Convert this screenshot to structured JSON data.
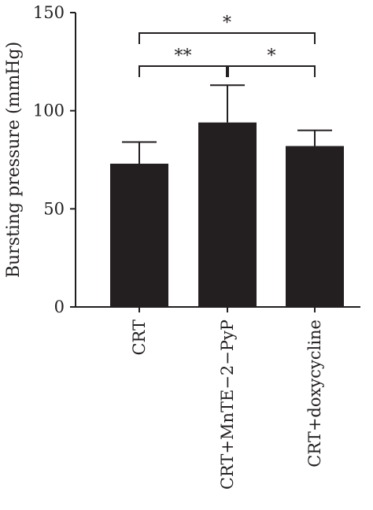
{
  "chart_data": {
    "type": "bar",
    "ylabel": "Bursting pressure (mmHg)",
    "xlabel": "",
    "ylim": [
      0,
      150
    ],
    "yticks": [
      0,
      50,
      100,
      150
    ],
    "categories": [
      "CRT",
      "CRT+MnTE−2−PyP",
      "CRT+doxycycline"
    ],
    "values": [
      73,
      94,
      82
    ],
    "errors": [
      11,
      19,
      8
    ],
    "bar_color": "#231f20",
    "significance": [
      {
        "from": 0,
        "to": 2,
        "label": "*"
      },
      {
        "from": 0,
        "to": 1,
        "label": "**"
      },
      {
        "from": 1,
        "to": 2,
        "label": "*"
      }
    ]
  }
}
